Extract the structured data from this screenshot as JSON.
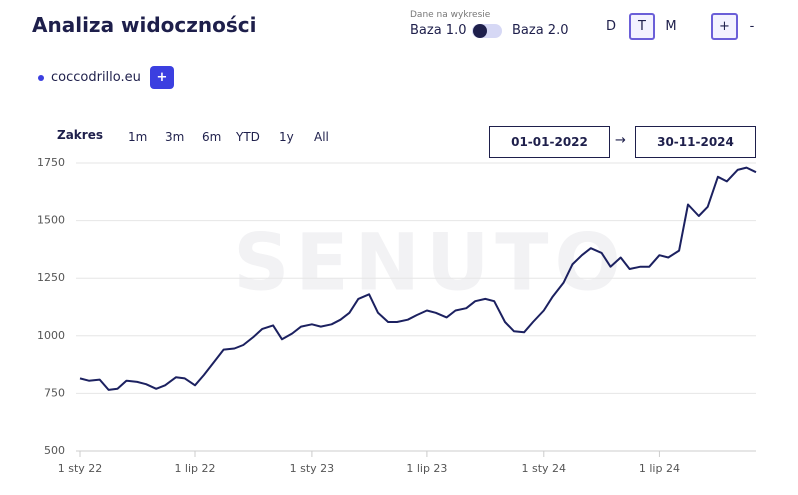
{
  "header": {
    "title": "Analiza widoczności",
    "data_label": "Dane na wykresie",
    "base_left": "Baza 1.0",
    "base_right": "Baza 2.0",
    "periods": [
      "D",
      "T",
      "M"
    ],
    "zoom_in": "+",
    "zoom_out": "-"
  },
  "domain_tag": {
    "add": "+"
  },
  "range": {
    "label": "Zakres",
    "options": [
      "1m",
      "3m",
      "6m",
      "YTD",
      "1y",
      "All"
    ],
    "from": "01-01-2022",
    "arrow": "→",
    "to": "30-11-2024"
  },
  "watermark": "SENUTO",
  "chart_data": {
    "type": "line",
    "x": [
      "2022-01-01",
      "2022-01-15",
      "2022-02-01",
      "2022-02-15",
      "2022-03-01",
      "2022-03-15",
      "2022-04-01",
      "2022-04-15",
      "2022-05-01",
      "2022-05-15",
      "2022-06-01",
      "2022-06-15",
      "2022-07-01",
      "2022-07-15",
      "2022-08-01",
      "2022-08-15",
      "2022-09-01",
      "2022-09-15",
      "2022-10-01",
      "2022-10-15",
      "2022-11-01",
      "2022-11-15",
      "2022-12-01",
      "2022-12-15",
      "2023-01-01",
      "2023-01-15",
      "2023-02-01",
      "2023-02-15",
      "2023-03-01",
      "2023-03-15",
      "2023-04-01",
      "2023-04-15",
      "2023-05-01",
      "2023-05-15",
      "2023-06-01",
      "2023-06-15",
      "2023-07-01",
      "2023-07-15",
      "2023-08-01",
      "2023-08-15",
      "2023-09-01",
      "2023-09-15",
      "2023-10-01",
      "2023-10-15",
      "2023-11-01",
      "2023-11-15",
      "2023-12-01",
      "2023-12-15",
      "2024-01-01",
      "2024-01-15",
      "2024-02-01",
      "2024-02-15",
      "2024-03-01",
      "2024-03-15",
      "2024-04-01",
      "2024-04-15",
      "2024-05-01",
      "2024-05-15",
      "2024-06-01",
      "2024-06-15",
      "2024-07-01",
      "2024-07-15",
      "2024-08-01",
      "2024-08-15",
      "2024-09-01",
      "2024-09-15",
      "2024-10-01",
      "2024-10-15",
      "2024-11-01",
      "2024-11-15",
      "2024-11-30"
    ],
    "series": [
      {
        "name": "coccodrillo.eu",
        "color": "#1c2160",
        "values": [
          815,
          805,
          810,
          765,
          770,
          805,
          800,
          790,
          770,
          785,
          820,
          815,
          785,
          830,
          890,
          940,
          945,
          960,
          995,
          1030,
          1045,
          985,
          1010,
          1040,
          1050,
          1040,
          1050,
          1070,
          1100,
          1160,
          1180,
          1100,
          1060,
          1060,
          1070,
          1090,
          1110,
          1100,
          1080,
          1110,
          1120,
          1150,
          1160,
          1150,
          1060,
          1020,
          1015,
          1060,
          1110,
          1170,
          1230,
          1310,
          1350,
          1380,
          1360,
          1300,
          1340,
          1290,
          1300,
          1300,
          1350,
          1340,
          1370,
          1570,
          1520,
          1560,
          1690,
          1670,
          1720,
          1730,
          1710
        ]
      }
    ],
    "xlim": [
      "2022-01-01",
      "2024-11-30"
    ],
    "xticks": [
      {
        "value": "2022-01-01",
        "label": "1 sty 22"
      },
      {
        "value": "2022-07-01",
        "label": "1 lip 22"
      },
      {
        "value": "2023-01-01",
        "label": "1 sty 23"
      },
      {
        "value": "2023-07-01",
        "label": "1 lip 23"
      },
      {
        "value": "2024-01-01",
        "label": "1 sty 24"
      },
      {
        "value": "2024-07-01",
        "label": "1 lip 24"
      }
    ],
    "ylim": [
      500,
      1750
    ],
    "yticks": [
      500,
      750,
      1000,
      1250,
      1500,
      1750
    ],
    "grid": true
  }
}
